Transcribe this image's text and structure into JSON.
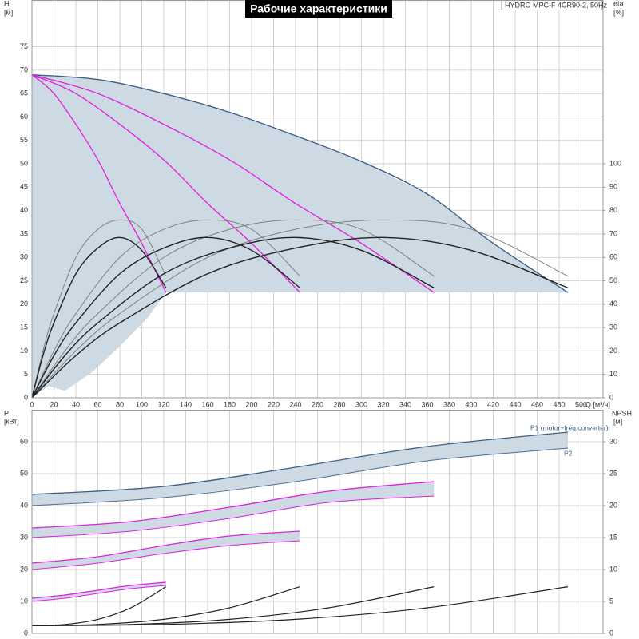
{
  "chart_data": [
    {
      "type": "line",
      "title": "Рабочие характеристики",
      "model": "HYDRO MPC-F 4CR90-2, 50Hz",
      "x_label": "Q [м³/ч]",
      "y_label": "H",
      "y_unit": "[м]",
      "y2_label": "eta",
      "y2_unit": "[%]",
      "xlim": [
        0,
        520
      ],
      "ylim": [
        0,
        85
      ],
      "y2lim": [
        0,
        170
      ],
      "xticks": [
        0,
        20,
        40,
        60,
        80,
        100,
        120,
        140,
        160,
        180,
        200,
        220,
        240,
        260,
        280,
        300,
        320,
        340,
        360,
        380,
        400,
        420,
        440,
        460,
        480,
        500
      ],
      "yticks": [
        0,
        5,
        10,
        15,
        20,
        25,
        30,
        35,
        40,
        45,
        50,
        55,
        60,
        65,
        70,
        75
      ],
      "y2ticks": [
        0,
        10,
        20,
        30,
        40,
        50,
        60,
        70,
        80,
        90,
        100
      ],
      "grid": true,
      "area_color": "#cdd9e3",
      "operating_area": {
        "x": [
          488,
          122,
          105,
          80,
          55,
          30,
          15,
          0
        ],
        "y": [
          22.5,
          22.5,
          17,
          11,
          5.5,
          1.5,
          2.5,
          0
        ]
      },
      "series": [
        {
          "color": "#3d5f85",
          "width": 1.4,
          "x": [
            0,
            60,
            120,
            180,
            240,
            300,
            360,
            420,
            488
          ],
          "values": [
            69,
            68,
            65,
            61,
            56,
            50.5,
            43.5,
            33,
            22.5
          ]
        },
        {
          "color": "#e020e0",
          "width": 1.3,
          "x": [
            0,
            20,
            44,
            62,
            80,
            100,
            122
          ],
          "values": [
            69,
            65,
            57,
            50,
            41.5,
            33,
            22.5
          ]
        },
        {
          "color": "#e020e0",
          "width": 1.3,
          "x": [
            0,
            40,
            88,
            124,
            160,
            200,
            244
          ],
          "values": [
            69,
            65,
            57,
            50,
            41.5,
            33,
            22.5
          ]
        },
        {
          "color": "#e020e0",
          "width": 1.3,
          "x": [
            0,
            60,
            132,
            186,
            240,
            300,
            366
          ],
          "values": [
            69,
            65,
            57,
            50,
            41.5,
            33,
            22.5
          ]
        },
        {
          "color": "#808080",
          "width": 1,
          "axis": "y2",
          "x": [
            0,
            10,
            20,
            40,
            60,
            80,
            100,
            122
          ],
          "values": [
            0,
            20,
            36,
            60,
            72,
            76,
            72,
            52
          ]
        },
        {
          "color": "#808080",
          "width": 1,
          "axis": "y2",
          "x": [
            0,
            20,
            40,
            80,
            120,
            160,
            200,
            244
          ],
          "values": [
            0,
            20,
            36,
            60,
            72,
            76,
            72,
            52
          ]
        },
        {
          "color": "#808080",
          "width": 1,
          "axis": "y2",
          "x": [
            0,
            30,
            60,
            120,
            180,
            240,
            300,
            366
          ],
          "values": [
            0,
            20,
            36,
            60,
            72,
            76,
            72,
            52
          ]
        },
        {
          "color": "#808080",
          "width": 1,
          "axis": "y2",
          "x": [
            0,
            40,
            80,
            160,
            240,
            320,
            400,
            488
          ],
          "values": [
            0,
            20,
            36,
            60,
            72,
            76,
            72,
            52
          ]
        },
        {
          "color": "#222222",
          "width": 1.4,
          "axis": "y2",
          "x": [
            0,
            10,
            20,
            40,
            60,
            80,
            100,
            122
          ],
          "values": [
            0,
            18,
            32,
            53,
            64,
            68.5,
            63,
            47
          ]
        },
        {
          "color": "#222222",
          "width": 1.4,
          "axis": "y2",
          "x": [
            0,
            20,
            40,
            80,
            120,
            160,
            200,
            244
          ],
          "values": [
            0,
            18,
            32,
            53,
            64,
            68.5,
            63,
            47
          ]
        },
        {
          "color": "#222222",
          "width": 1.4,
          "axis": "y2",
          "x": [
            0,
            30,
            60,
            120,
            180,
            240,
            300,
            366
          ],
          "values": [
            0,
            18,
            32,
            53,
            64,
            68.5,
            63,
            47
          ]
        },
        {
          "color": "#222222",
          "width": 1.4,
          "axis": "y2",
          "x": [
            0,
            40,
            80,
            160,
            240,
            320,
            400,
            488
          ],
          "values": [
            0,
            18,
            32,
            53,
            64,
            68.5,
            63,
            47
          ]
        }
      ]
    },
    {
      "type": "line",
      "y_label": "P",
      "y_unit": "[кВт]",
      "y2_label": "NPSH",
      "y2_unit": "[м]",
      "xlim": [
        0,
        520
      ],
      "ylim": [
        0,
        70
      ],
      "y2lim": [
        0,
        35
      ],
      "yticks": [
        0,
        10,
        20,
        30,
        40,
        50,
        60
      ],
      "y2ticks": [
        0,
        5,
        10,
        15,
        20,
        25,
        30
      ],
      "grid": true,
      "area_color": "#cdd9e3",
      "series": [
        {
          "name": "P1 (motor+freq.converter)",
          "color": "#3d5f85",
          "width": 1.3,
          "x": [
            0,
            120,
            240,
            360,
            488
          ],
          "values": [
            43.5,
            46,
            52,
            58.5,
            63
          ]
        },
        {
          "name": "P2",
          "color": "#4d6f95",
          "width": 1,
          "x": [
            0,
            120,
            240,
            360,
            488
          ],
          "values": [
            40,
            42.5,
            47.5,
            54,
            58
          ]
        },
        {
          "color": "#e020e0",
          "width": 1.3,
          "x": [
            0,
            90,
            180,
            270,
            366
          ],
          "values": [
            33,
            35,
            39.5,
            44.5,
            47.5
          ]
        },
        {
          "color": "#e020e0",
          "width": 1,
          "x": [
            0,
            90,
            180,
            270,
            366
          ],
          "values": [
            30,
            32,
            36,
            41,
            43
          ]
        },
        {
          "color": "#e020e0",
          "width": 1.3,
          "x": [
            0,
            60,
            120,
            180,
            244
          ],
          "values": [
            22,
            24,
            27.5,
            30.5,
            32
          ]
        },
        {
          "color": "#e020e0",
          "width": 1,
          "x": [
            0,
            60,
            120,
            180,
            244
          ],
          "values": [
            20,
            22,
            25,
            27.5,
            29
          ]
        },
        {
          "color": "#e020e0",
          "width": 1.3,
          "x": [
            0,
            30,
            60,
            90,
            122
          ],
          "values": [
            11,
            12,
            13.5,
            15,
            16
          ]
        },
        {
          "color": "#e020e0",
          "width": 1,
          "x": [
            0,
            30,
            60,
            90,
            122
          ],
          "values": [
            10,
            11,
            12.5,
            14,
            15
          ]
        },
        {
          "color": "#222222",
          "width": 1.2,
          "axis": "y2",
          "x": [
            0,
            30,
            60,
            90,
            122
          ],
          "values": [
            1.2,
            1.4,
            2.2,
            4,
            7.3
          ]
        },
        {
          "color": "#222222",
          "width": 1.2,
          "axis": "y2",
          "x": [
            0,
            60,
            120,
            180,
            244
          ],
          "values": [
            1.2,
            1.4,
            2.2,
            4,
            7.3
          ]
        },
        {
          "color": "#222222",
          "width": 1.2,
          "axis": "y2",
          "x": [
            0,
            90,
            180,
            270,
            366
          ],
          "values": [
            1.2,
            1.4,
            2.2,
            4,
            7.3
          ]
        },
        {
          "color": "#222222",
          "width": 1.2,
          "axis": "y2",
          "x": [
            0,
            120,
            240,
            360,
            488
          ],
          "values": [
            1.2,
            1.4,
            2.2,
            4,
            7.3
          ]
        }
      ]
    }
  ]
}
